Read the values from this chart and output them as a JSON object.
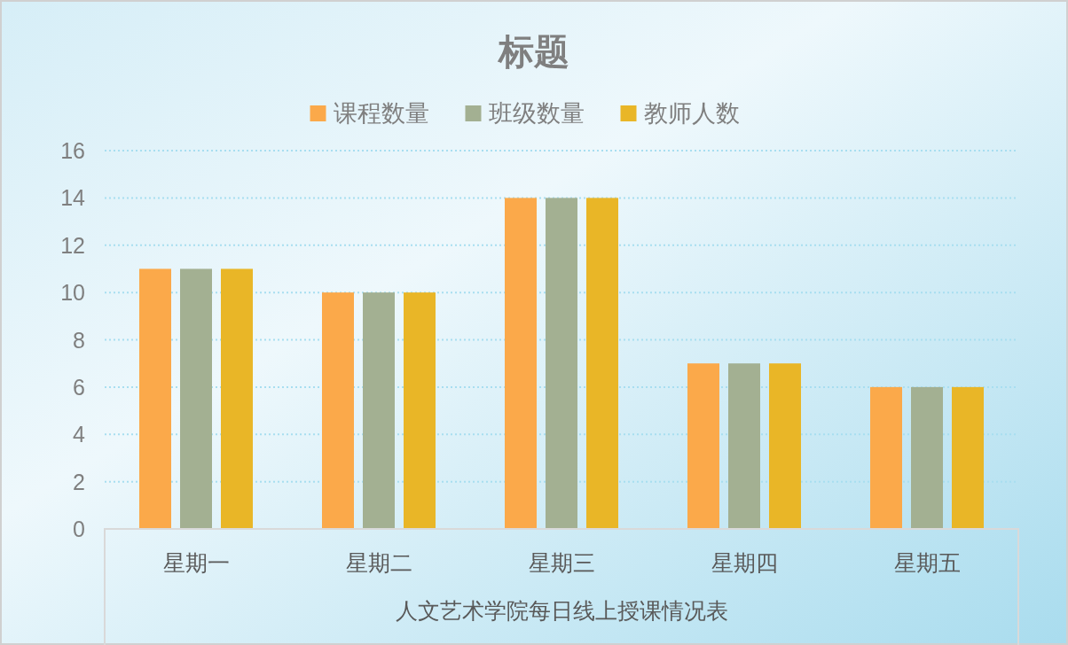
{
  "chart_data": {
    "type": "bar",
    "title": "标题",
    "xlabel": "人文艺术学院每日线上授课情况表",
    "categories": [
      "星期一",
      "星期二",
      "星期三",
      "星期四",
      "星期五"
    ],
    "series": [
      {
        "name": "课程数量",
        "color": "#fba94a",
        "values": [
          11,
          10,
          14,
          7,
          6
        ]
      },
      {
        "name": "班级数量",
        "color": "#a3b092",
        "values": [
          11,
          10,
          14,
          7,
          6
        ]
      },
      {
        "name": "教师人数",
        "color": "#e9b627",
        "values": [
          11,
          10,
          14,
          7,
          6
        ]
      }
    ],
    "ylim": [
      0,
      16
    ],
    "yticks": [
      0,
      2,
      4,
      6,
      8,
      10,
      12,
      14,
      16
    ],
    "grid": "y",
    "legend": "top"
  }
}
